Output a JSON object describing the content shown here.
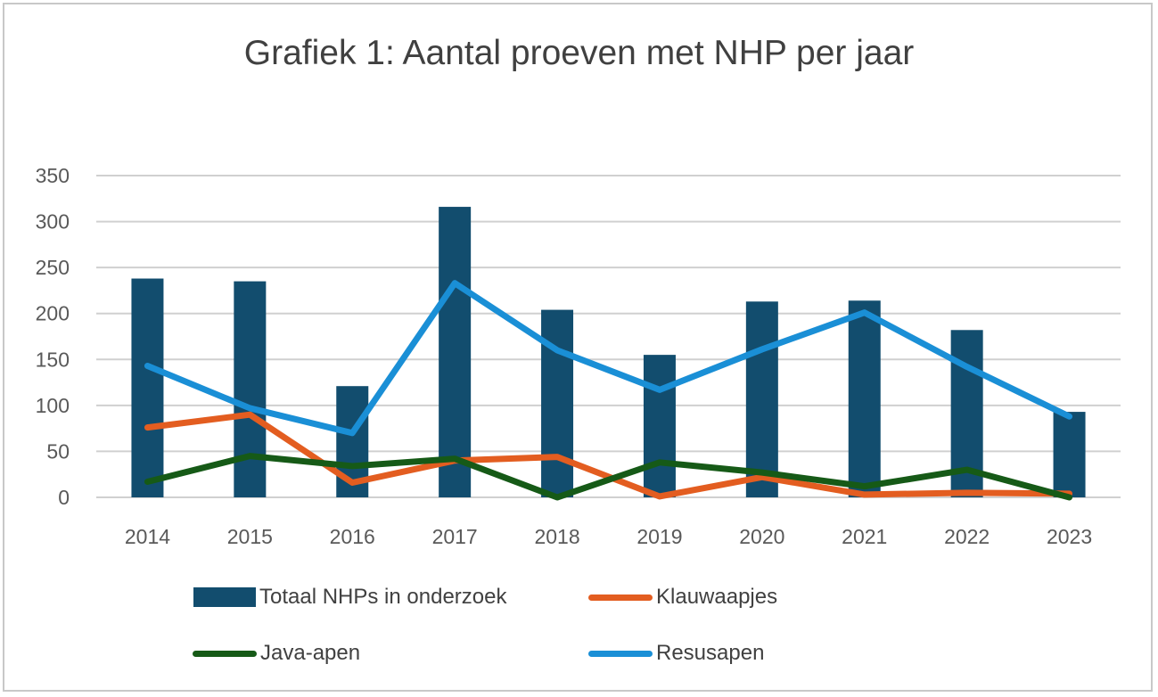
{
  "chart_data": {
    "type": "bar",
    "title": "Grafiek 1: Aantal proeven met NHP per jaar",
    "xlabel": "",
    "ylabel": "",
    "ylim": [
      0,
      350
    ],
    "yticks": [
      "0",
      "50",
      "100",
      "150",
      "200",
      "250",
      "300",
      "350"
    ],
    "ytick_values": [
      0,
      50,
      100,
      150,
      200,
      250,
      300,
      350
    ],
    "grid": true,
    "legend_position": "bottom",
    "categories": [
      "2014",
      "2015",
      "2016",
      "2017",
      "2018",
      "2019",
      "2020",
      "2021",
      "2022",
      "2023"
    ],
    "series": [
      {
        "name": "Totaal NHPs in onderzoek",
        "kind": "bar",
        "color": "#124d6e",
        "values": [
          238,
          235,
          121,
          316,
          204,
          155,
          213,
          214,
          182,
          93
        ]
      },
      {
        "name": "Klauwaapjes",
        "kind": "line",
        "color": "#e35d20",
        "values": [
          76,
          90,
          16,
          40,
          44,
          1,
          22,
          3,
          5,
          4
        ]
      },
      {
        "name": "Java-apen",
        "kind": "line",
        "color": "#165a17",
        "values": [
          17,
          45,
          34,
          42,
          0,
          38,
          27,
          12,
          30,
          0
        ]
      },
      {
        "name": "Resusapen",
        "kind": "line",
        "color": "#1a8fd6",
        "values": [
          143,
          97,
          70,
          233,
          160,
          117,
          161,
          201,
          142,
          88
        ]
      }
    ]
  }
}
